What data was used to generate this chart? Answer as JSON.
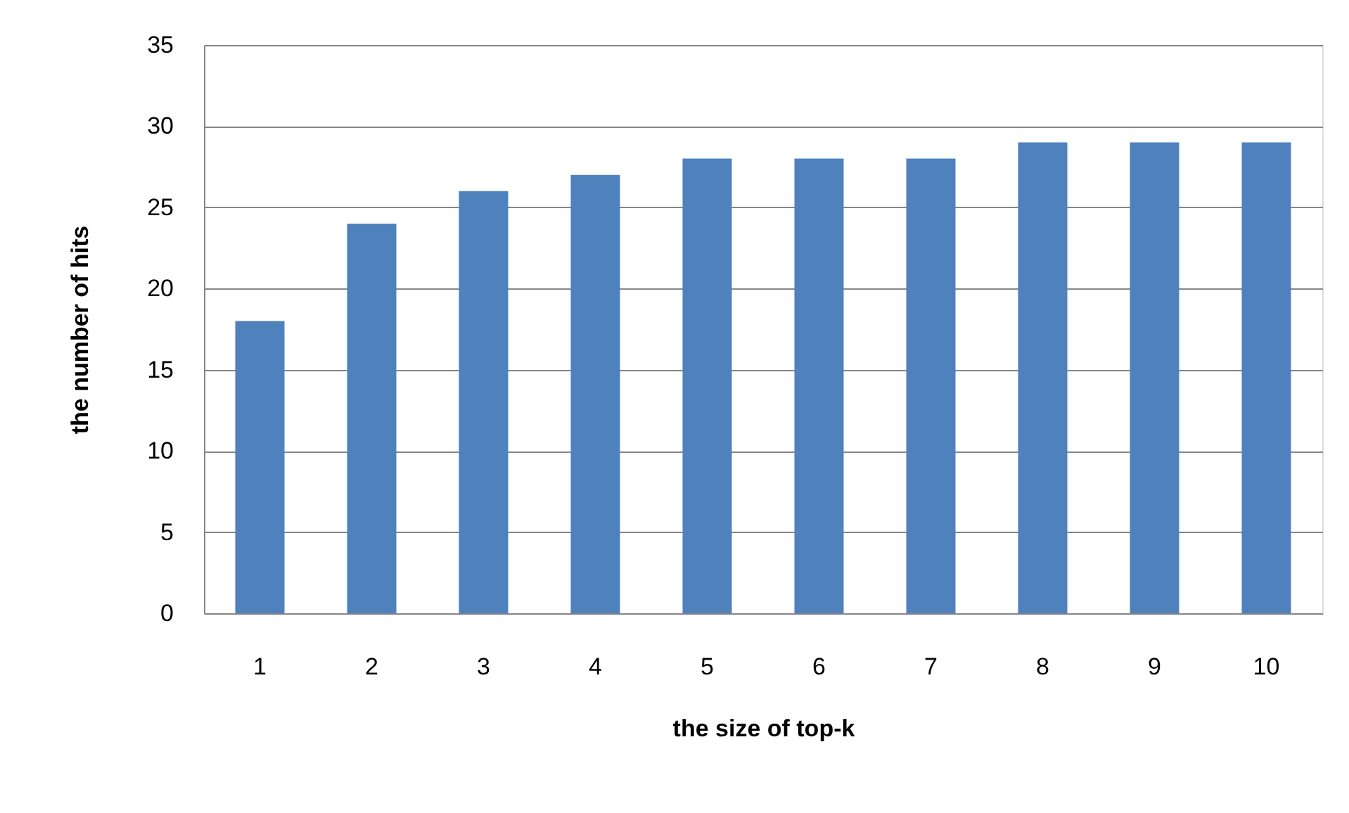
{
  "chart_data": {
    "type": "bar",
    "xlabel": "the size of top-k",
    "ylabel": "the number of hits",
    "categories": [
      "1",
      "2",
      "3",
      "4",
      "5",
      "6",
      "7",
      "8",
      "9",
      "10"
    ],
    "values": [
      18,
      24,
      26,
      27,
      28,
      28,
      28,
      29,
      29,
      29
    ],
    "color": "#4f81bd",
    "ylim": [
      0,
      35
    ],
    "yticks": [
      0,
      5,
      10,
      15,
      20,
      25,
      30,
      35
    ],
    "grid": "y"
  }
}
